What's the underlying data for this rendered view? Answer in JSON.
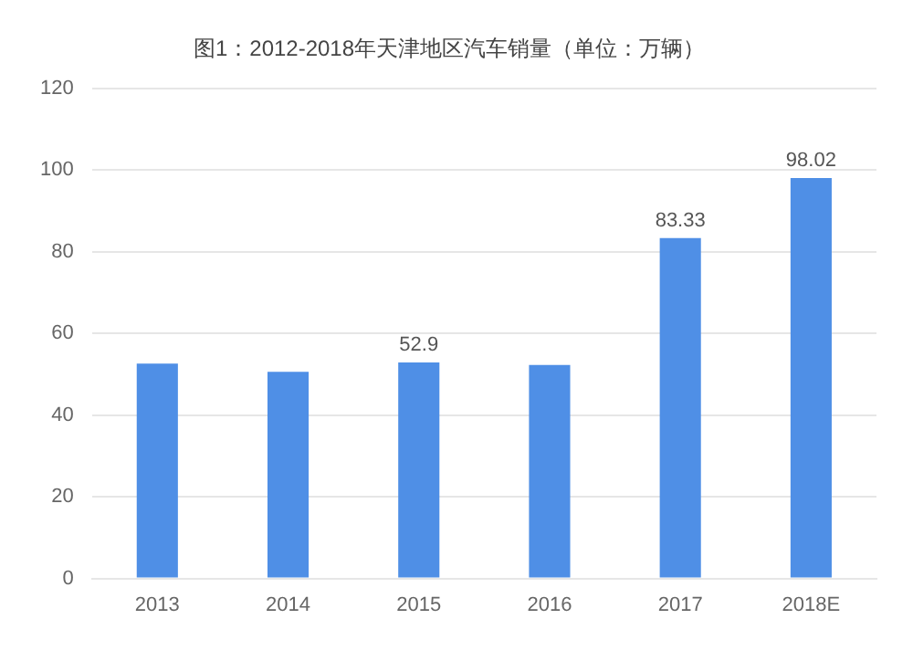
{
  "chart_data": {
    "type": "bar",
    "title": "图1：2012-2018年天津地区汽车销量（单位：万辆）",
    "categories": [
      "2013",
      "2014",
      "2015",
      "2016",
      "2017",
      "2018E"
    ],
    "values": [
      52.6,
      50.6,
      52.9,
      52.3,
      83.33,
      98.02
    ],
    "value_labels": [
      null,
      null,
      "52.9",
      null,
      "83.33",
      "98.02"
    ],
    "color": "#4f8fe6",
    "ylim": [
      0,
      120
    ],
    "yticks": [
      0,
      20,
      40,
      60,
      80,
      100,
      120
    ],
    "grid": "y",
    "legend": false
  }
}
